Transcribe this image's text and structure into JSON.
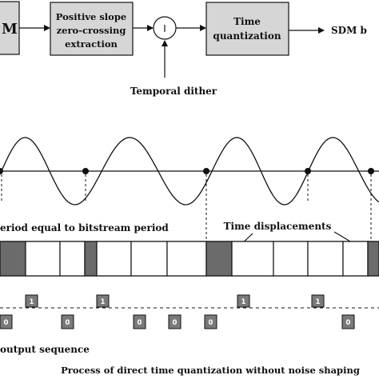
{
  "blocks": {
    "left_partial": "M",
    "zero_crossing": [
      "Positive slope",
      "zero-crossing",
      "extraction"
    ],
    "time_quant": [
      "Time",
      "quantization"
    ],
    "output": "SDM b"
  },
  "dither_label": "Temporal dither",
  "period_label": "eriod equal to bitstream period",
  "displacement_label": "Time displacements",
  "sequence": {
    "high_values": [
      "1",
      "1",
      "1",
      "1"
    ],
    "low_values": [
      "0",
      "0",
      "0",
      "0",
      "0",
      "0"
    ]
  },
  "output_label": "output sequence",
  "caption": "Process of direct time quantization without noise shaping",
  "colors": {
    "block_fill": "#d6d6d6",
    "filled_cell": "#6b6b6b",
    "line": "#111111"
  }
}
